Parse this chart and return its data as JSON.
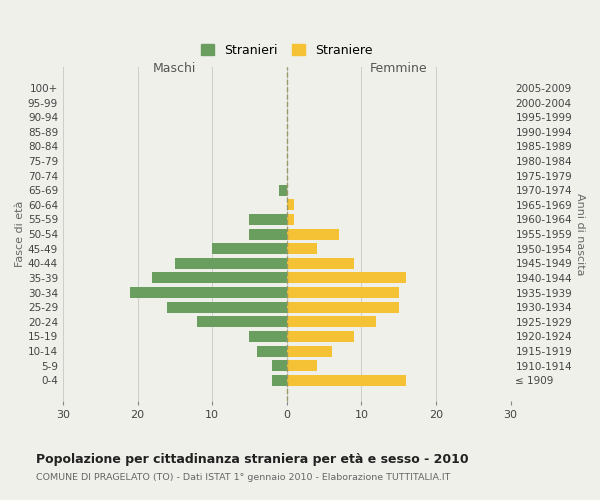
{
  "age_groups": [
    "100+",
    "95-99",
    "90-94",
    "85-89",
    "80-84",
    "75-79",
    "70-74",
    "65-69",
    "60-64",
    "55-59",
    "50-54",
    "45-49",
    "40-44",
    "35-39",
    "30-34",
    "25-29",
    "20-24",
    "15-19",
    "10-14",
    "5-9",
    "0-4"
  ],
  "birth_years": [
    "≤ 1909",
    "1910-1914",
    "1915-1919",
    "1920-1924",
    "1925-1929",
    "1930-1934",
    "1935-1939",
    "1940-1944",
    "1945-1949",
    "1950-1954",
    "1955-1959",
    "1960-1964",
    "1965-1969",
    "1970-1974",
    "1975-1979",
    "1980-1984",
    "1985-1989",
    "1990-1994",
    "1995-1999",
    "2000-2004",
    "2005-2009"
  ],
  "males": [
    0,
    0,
    0,
    0,
    0,
    0,
    0,
    1,
    0,
    5,
    5,
    10,
    15,
    18,
    21,
    16,
    12,
    5,
    4,
    2,
    2
  ],
  "females": [
    0,
    0,
    0,
    0,
    0,
    0,
    0,
    0,
    1,
    1,
    7,
    4,
    9,
    16,
    15,
    15,
    12,
    9,
    6,
    4,
    16
  ],
  "male_color": "#6a9e5e",
  "female_color": "#f5c135",
  "background_color": "#f0f0eb",
  "grid_color": "#cccccc",
  "title": "Popolazione per cittadinanza straniera per età e sesso - 2010",
  "subtitle": "COMUNE DI PRAGELATO (TO) - Dati ISTAT 1° gennaio 2010 - Elaborazione TUTTITALIA.IT",
  "xlabel_left": "Maschi",
  "xlabel_right": "Femmine",
  "ylabel_left": "Fasce di età",
  "ylabel_right": "Anni di nascita",
  "legend_male": "Stranieri",
  "legend_female": "Straniere",
  "xlim": 30,
  "bar_height": 0.75
}
